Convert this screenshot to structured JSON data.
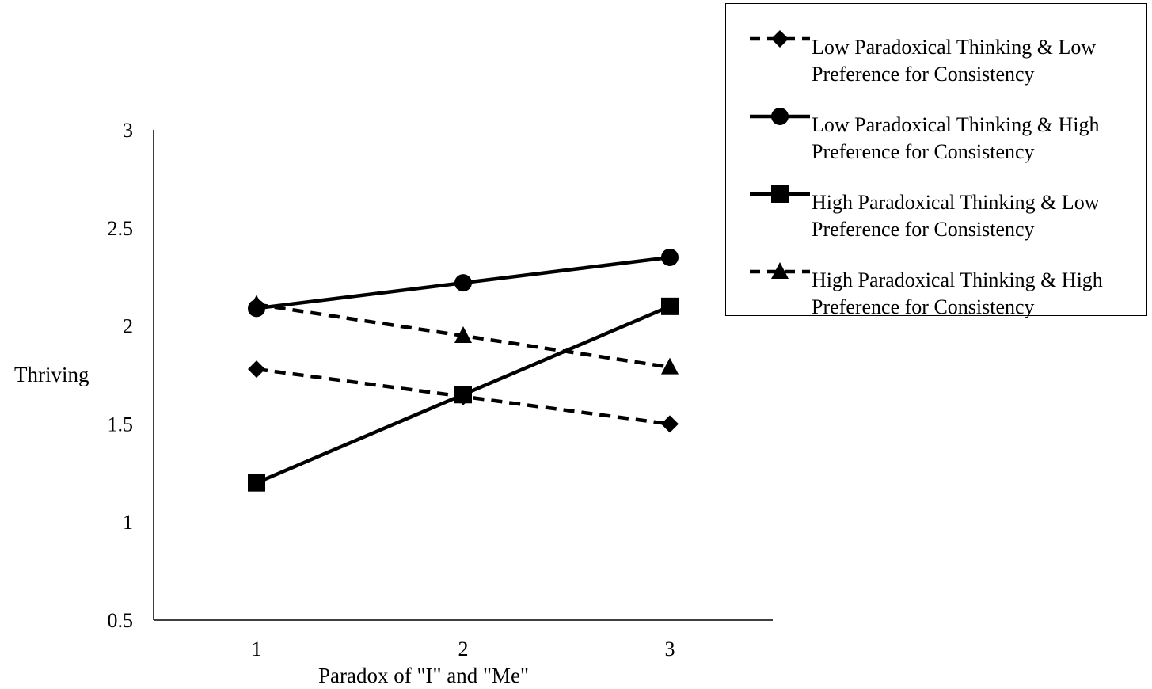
{
  "chart_data": {
    "type": "line",
    "title": "",
    "xlabel": "Paradox of \"I\" and \"Me\"",
    "ylabel": "Thriving",
    "x": [
      1,
      2,
      3
    ],
    "x_ticks": [
      "1",
      "2",
      "3"
    ],
    "ylim": [
      0.5,
      3
    ],
    "y_ticks": [
      "0.5",
      "1",
      "1.5",
      "2",
      "2.5",
      "3"
    ],
    "grid": false,
    "legend_position": "top-right",
    "series": [
      {
        "name": "Low Paradoxical Thinking & Low Preference for Consistency",
        "name_lines": [
          "Low Paradoxical Thinking & Low",
          "Preference for Consistency"
        ],
        "values": [
          1.78,
          1.64,
          1.5
        ],
        "line_style": "dashed",
        "marker": "diamond",
        "color": "#000000"
      },
      {
        "name": "Low Paradoxical Thinking & High Preference for Consistency",
        "name_lines": [
          "Low Paradoxical Thinking & High",
          "Preference for Consistency"
        ],
        "values": [
          2.09,
          2.22,
          2.35
        ],
        "line_style": "solid",
        "marker": "circle",
        "color": "#000000"
      },
      {
        "name": "High Paradoxical Thinking & Low Preference for Consistency",
        "name_lines": [
          "High Paradoxical Thinking & Low",
          "Preference for Consistency"
        ],
        "values": [
          1.2,
          1.65,
          2.1
        ],
        "line_style": "solid",
        "marker": "square",
        "color": "#000000"
      },
      {
        "name": "High Paradoxical Thinking & High Preference for Consistency",
        "name_lines": [
          "High Paradoxical Thinking & High",
          "Preference for Consistency"
        ],
        "values": [
          2.11,
          1.95,
          1.79
        ],
        "line_style": "dashed",
        "marker": "triangle",
        "color": "#000000"
      }
    ]
  }
}
